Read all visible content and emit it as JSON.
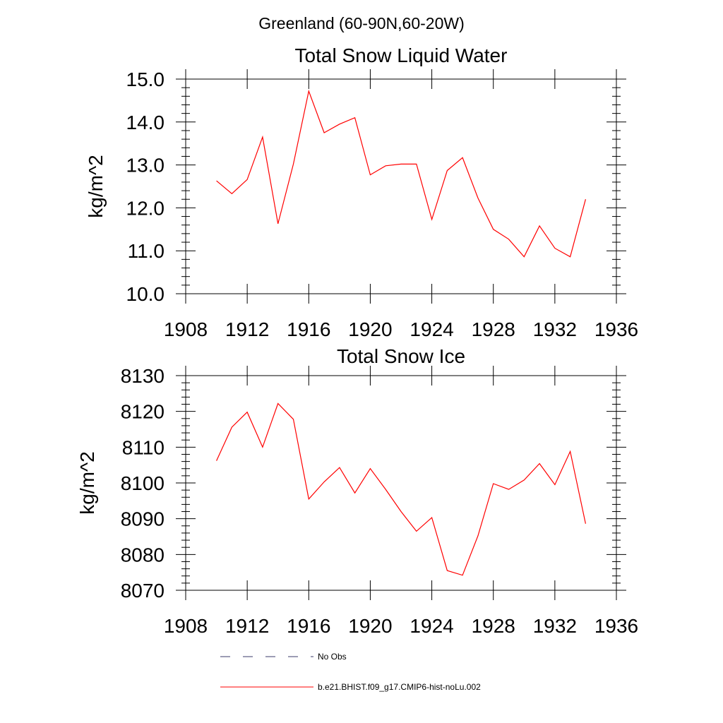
{
  "figure": {
    "title": "Greenland (60-90N,60-20W)"
  },
  "legend": {
    "items": [
      {
        "label": "No Obs",
        "color": "#3a3a6a",
        "dash": "dashed"
      },
      {
        "label": "b.e21.BHIST.f09_g17.CMIP6-hist-noLu.002",
        "color": "#ff0000",
        "dash": "solid"
      }
    ]
  },
  "chart_data": [
    {
      "type": "line",
      "title": "Total Snow Liquid Water",
      "xlabel": "",
      "ylabel": "kg/m^2",
      "xlim": [
        1908,
        1936
      ],
      "ylim": [
        10.0,
        15.0
      ],
      "x_ticks": [
        "1908",
        "1912",
        "1916",
        "1920",
        "1924",
        "1928",
        "1932",
        "1936"
      ],
      "y_ticks": [
        "10.0",
        "11.0",
        "12.0",
        "13.0",
        "14.0",
        "15.0"
      ],
      "grid": false,
      "series": [
        {
          "name": "b.e21.BHIST.f09_g17.CMIP6-hist-noLu.002",
          "color": "#ff0000",
          "x": [
            1910,
            1911,
            1912,
            1913,
            1914,
            1915,
            1916,
            1917,
            1918,
            1919,
            1920,
            1921,
            1922,
            1923,
            1924,
            1925,
            1926,
            1927,
            1928,
            1929,
            1930,
            1931,
            1932,
            1933,
            1934
          ],
          "y": [
            12.63,
            12.33,
            12.66,
            13.65,
            11.63,
            13.02,
            14.72,
            13.75,
            13.95,
            14.1,
            12.77,
            12.98,
            13.02,
            13.02,
            11.73,
            12.87,
            13.17,
            12.23,
            11.5,
            11.27,
            10.86,
            11.58,
            11.06,
            10.86,
            12.2
          ]
        }
      ]
    },
    {
      "type": "line",
      "title": "Total Snow Ice",
      "xlabel": "",
      "ylabel": "kg/m^2",
      "xlim": [
        1908,
        1936
      ],
      "ylim": [
        8070,
        8130
      ],
      "x_ticks": [
        "1908",
        "1912",
        "1916",
        "1920",
        "1924",
        "1928",
        "1932",
        "1936"
      ],
      "y_ticks": [
        "8070",
        "8080",
        "8090",
        "8100",
        "8110",
        "8120",
        "8130"
      ],
      "grid": false,
      "series": [
        {
          "name": "b.e21.BHIST.f09_g17.CMIP6-hist-noLu.002",
          "color": "#ff0000",
          "x": [
            1910,
            1911,
            1912,
            1913,
            1914,
            1915,
            1916,
            1917,
            1918,
            1919,
            1920,
            1921,
            1922,
            1923,
            1924,
            1925,
            1926,
            1927,
            1928,
            1929,
            1930,
            1931,
            1932,
            1933,
            1934
          ],
          "y": [
            8106.2,
            8115.6,
            8119.8,
            8110.0,
            8122.2,
            8117.8,
            8095.5,
            8100.3,
            8104.3,
            8097.2,
            8104.0,
            8098.2,
            8092.0,
            8086.5,
            8090.3,
            8075.5,
            8074.2,
            8085.2,
            8099.8,
            8098.2,
            8100.8,
            8105.4,
            8099.5,
            8108.8,
            8088.6
          ]
        }
      ]
    }
  ]
}
